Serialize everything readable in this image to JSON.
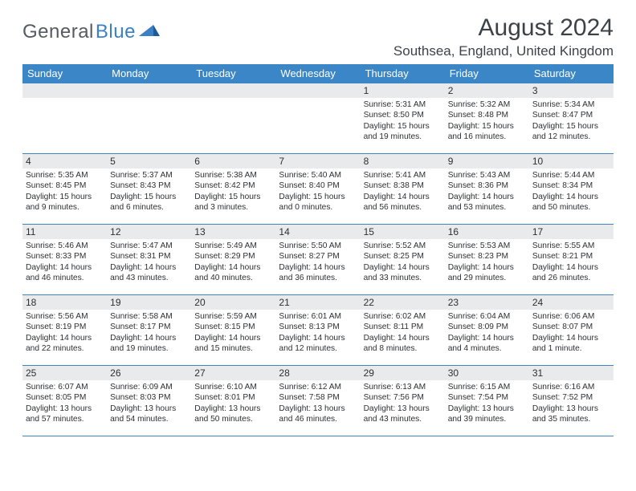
{
  "logo": {
    "text1": "General",
    "text2": "Blue"
  },
  "title": "August 2024",
  "location": "Southsea, England, United Kingdom",
  "colors": {
    "header_bg": "#3b86c7",
    "daynum_bg": "#e8eaec",
    "text": "#2d2f31",
    "logo_gray": "#555b62",
    "logo_blue": "#3b7fc4"
  },
  "weekdays": [
    "Sunday",
    "Monday",
    "Tuesday",
    "Wednesday",
    "Thursday",
    "Friday",
    "Saturday"
  ],
  "weeks": [
    [
      {
        "empty": true
      },
      {
        "empty": true
      },
      {
        "empty": true
      },
      {
        "empty": true
      },
      {
        "num": "1",
        "sunrise": "Sunrise: 5:31 AM",
        "sunset": "Sunset: 8:50 PM",
        "daylight": "Daylight: 15 hours and 19 minutes."
      },
      {
        "num": "2",
        "sunrise": "Sunrise: 5:32 AM",
        "sunset": "Sunset: 8:48 PM",
        "daylight": "Daylight: 15 hours and 16 minutes."
      },
      {
        "num": "3",
        "sunrise": "Sunrise: 5:34 AM",
        "sunset": "Sunset: 8:47 PM",
        "daylight": "Daylight: 15 hours and 12 minutes."
      }
    ],
    [
      {
        "num": "4",
        "sunrise": "Sunrise: 5:35 AM",
        "sunset": "Sunset: 8:45 PM",
        "daylight": "Daylight: 15 hours and 9 minutes."
      },
      {
        "num": "5",
        "sunrise": "Sunrise: 5:37 AM",
        "sunset": "Sunset: 8:43 PM",
        "daylight": "Daylight: 15 hours and 6 minutes."
      },
      {
        "num": "6",
        "sunrise": "Sunrise: 5:38 AM",
        "sunset": "Sunset: 8:42 PM",
        "daylight": "Daylight: 15 hours and 3 minutes."
      },
      {
        "num": "7",
        "sunrise": "Sunrise: 5:40 AM",
        "sunset": "Sunset: 8:40 PM",
        "daylight": "Daylight: 15 hours and 0 minutes."
      },
      {
        "num": "8",
        "sunrise": "Sunrise: 5:41 AM",
        "sunset": "Sunset: 8:38 PM",
        "daylight": "Daylight: 14 hours and 56 minutes."
      },
      {
        "num": "9",
        "sunrise": "Sunrise: 5:43 AM",
        "sunset": "Sunset: 8:36 PM",
        "daylight": "Daylight: 14 hours and 53 minutes."
      },
      {
        "num": "10",
        "sunrise": "Sunrise: 5:44 AM",
        "sunset": "Sunset: 8:34 PM",
        "daylight": "Daylight: 14 hours and 50 minutes."
      }
    ],
    [
      {
        "num": "11",
        "sunrise": "Sunrise: 5:46 AM",
        "sunset": "Sunset: 8:33 PM",
        "daylight": "Daylight: 14 hours and 46 minutes."
      },
      {
        "num": "12",
        "sunrise": "Sunrise: 5:47 AM",
        "sunset": "Sunset: 8:31 PM",
        "daylight": "Daylight: 14 hours and 43 minutes."
      },
      {
        "num": "13",
        "sunrise": "Sunrise: 5:49 AM",
        "sunset": "Sunset: 8:29 PM",
        "daylight": "Daylight: 14 hours and 40 minutes."
      },
      {
        "num": "14",
        "sunrise": "Sunrise: 5:50 AM",
        "sunset": "Sunset: 8:27 PM",
        "daylight": "Daylight: 14 hours and 36 minutes."
      },
      {
        "num": "15",
        "sunrise": "Sunrise: 5:52 AM",
        "sunset": "Sunset: 8:25 PM",
        "daylight": "Daylight: 14 hours and 33 minutes."
      },
      {
        "num": "16",
        "sunrise": "Sunrise: 5:53 AM",
        "sunset": "Sunset: 8:23 PM",
        "daylight": "Daylight: 14 hours and 29 minutes."
      },
      {
        "num": "17",
        "sunrise": "Sunrise: 5:55 AM",
        "sunset": "Sunset: 8:21 PM",
        "daylight": "Daylight: 14 hours and 26 minutes."
      }
    ],
    [
      {
        "num": "18",
        "sunrise": "Sunrise: 5:56 AM",
        "sunset": "Sunset: 8:19 PM",
        "daylight": "Daylight: 14 hours and 22 minutes."
      },
      {
        "num": "19",
        "sunrise": "Sunrise: 5:58 AM",
        "sunset": "Sunset: 8:17 PM",
        "daylight": "Daylight: 14 hours and 19 minutes."
      },
      {
        "num": "20",
        "sunrise": "Sunrise: 5:59 AM",
        "sunset": "Sunset: 8:15 PM",
        "daylight": "Daylight: 14 hours and 15 minutes."
      },
      {
        "num": "21",
        "sunrise": "Sunrise: 6:01 AM",
        "sunset": "Sunset: 8:13 PM",
        "daylight": "Daylight: 14 hours and 12 minutes."
      },
      {
        "num": "22",
        "sunrise": "Sunrise: 6:02 AM",
        "sunset": "Sunset: 8:11 PM",
        "daylight": "Daylight: 14 hours and 8 minutes."
      },
      {
        "num": "23",
        "sunrise": "Sunrise: 6:04 AM",
        "sunset": "Sunset: 8:09 PM",
        "daylight": "Daylight: 14 hours and 4 minutes."
      },
      {
        "num": "24",
        "sunrise": "Sunrise: 6:06 AM",
        "sunset": "Sunset: 8:07 PM",
        "daylight": "Daylight: 14 hours and 1 minute."
      }
    ],
    [
      {
        "num": "25",
        "sunrise": "Sunrise: 6:07 AM",
        "sunset": "Sunset: 8:05 PM",
        "daylight": "Daylight: 13 hours and 57 minutes."
      },
      {
        "num": "26",
        "sunrise": "Sunrise: 6:09 AM",
        "sunset": "Sunset: 8:03 PM",
        "daylight": "Daylight: 13 hours and 54 minutes."
      },
      {
        "num": "27",
        "sunrise": "Sunrise: 6:10 AM",
        "sunset": "Sunset: 8:01 PM",
        "daylight": "Daylight: 13 hours and 50 minutes."
      },
      {
        "num": "28",
        "sunrise": "Sunrise: 6:12 AM",
        "sunset": "Sunset: 7:58 PM",
        "daylight": "Daylight: 13 hours and 46 minutes."
      },
      {
        "num": "29",
        "sunrise": "Sunrise: 6:13 AM",
        "sunset": "Sunset: 7:56 PM",
        "daylight": "Daylight: 13 hours and 43 minutes."
      },
      {
        "num": "30",
        "sunrise": "Sunrise: 6:15 AM",
        "sunset": "Sunset: 7:54 PM",
        "daylight": "Daylight: 13 hours and 39 minutes."
      },
      {
        "num": "31",
        "sunrise": "Sunrise: 6:16 AM",
        "sunset": "Sunset: 7:52 PM",
        "daylight": "Daylight: 13 hours and 35 minutes."
      }
    ]
  ]
}
